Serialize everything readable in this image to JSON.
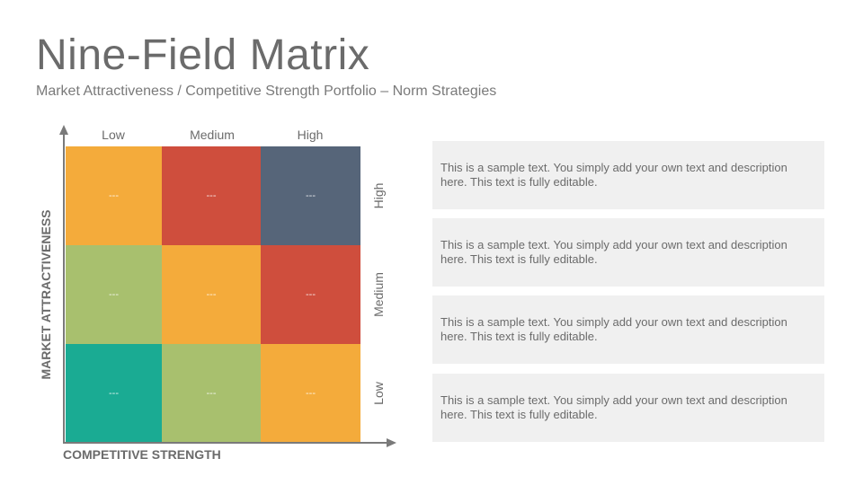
{
  "header": {
    "title": "Nine-Field Matrix",
    "subtitle": "Market Attractiveness / Competitive Strength Portfolio – Norm Strategies"
  },
  "matrix": {
    "y_axis_title": "MARKET ATTRACTIVENESS",
    "x_axis_title": "COMPETITIVE STRENGTH",
    "columns": [
      "Low",
      "Medium",
      "High"
    ],
    "rows": [
      "High",
      "Medium",
      "Low"
    ],
    "cells": [
      [
        {
          "text": "---",
          "color": "#f4ab3b"
        },
        {
          "text": "---",
          "color": "#cf4e3d"
        },
        {
          "text": "---",
          "color": "#566579"
        }
      ],
      [
        {
          "text": "---",
          "color": "#a8c06e"
        },
        {
          "text": "---",
          "color": "#f4ab3b"
        },
        {
          "text": "---",
          "color": "#cf4e3d"
        }
      ],
      [
        {
          "text": "---",
          "color": "#1aab93"
        },
        {
          "text": "---",
          "color": "#a8c06e"
        },
        {
          "text": "---",
          "color": "#f4ab3b"
        }
      ]
    ],
    "axis_color": "#7a7a7a"
  },
  "descriptions": [
    {
      "text": "This is a sample text. You simply add your own text and description here. This text is fully editable."
    },
    {
      "text": "This is a sample text. You simply add your own text and description here. This text is fully editable."
    },
    {
      "text": "This is a sample text. You simply add your own text and description here. This text is fully editable."
    },
    {
      "text": "This is a sample text. You simply add your own text and description here. This text is fully editable."
    }
  ]
}
